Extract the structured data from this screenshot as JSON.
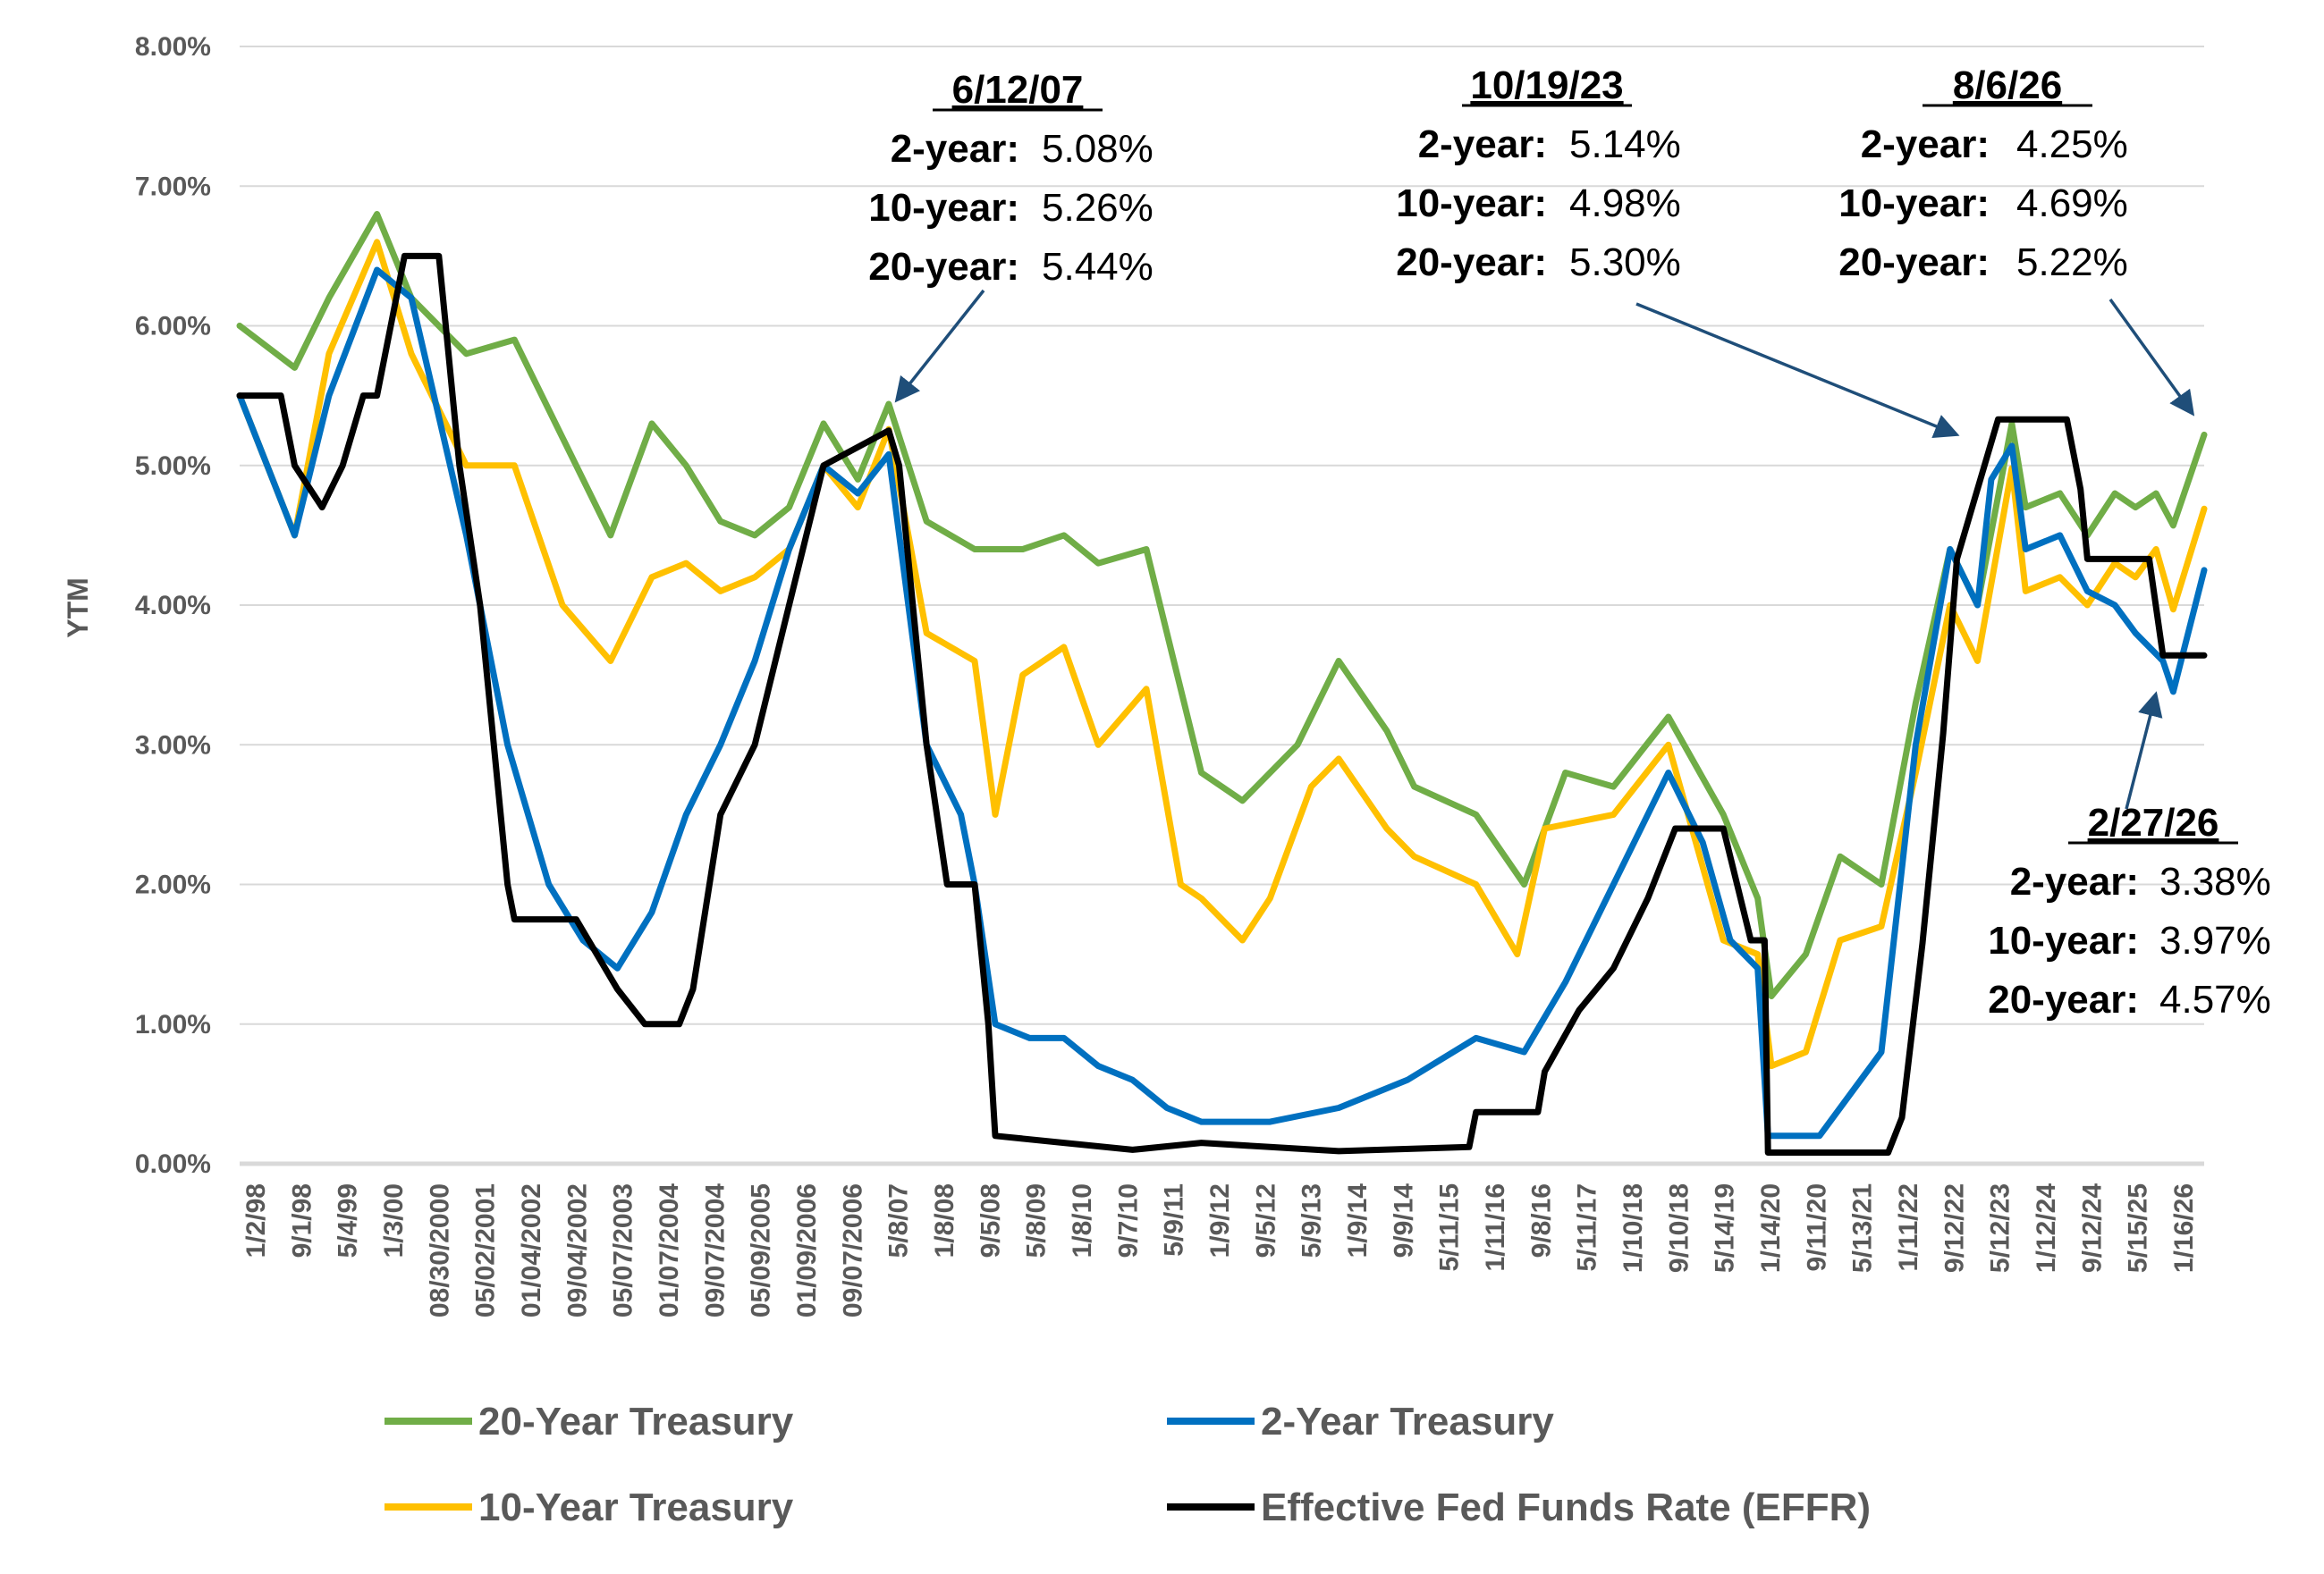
{
  "chart_data": {
    "type": "line",
    "title": "",
    "xlabel": "",
    "ylabel": "YTM",
    "ylim": [
      0,
      0.08
    ],
    "y_ticks": [
      "0.00%",
      "1.00%",
      "2.00%",
      "3.00%",
      "4.00%",
      "5.00%",
      "6.00%",
      "7.00%",
      "8.00%"
    ],
    "x_ticks": [
      "1/2/98",
      "9/1/98",
      "5/4/99",
      "1/3/00",
      "08/30/2000",
      "05/02/2001",
      "01/04/2002",
      "09/04/2002",
      "05/07/2003",
      "01/07/2004",
      "09/07/2004",
      "05/09/2005",
      "01/09/2006",
      "09/07/2006",
      "5/8/07",
      "1/8/08",
      "9/5/08",
      "5/8/09",
      "1/8/10",
      "9/7/10",
      "5/9/11",
      "1/9/12",
      "9/5/12",
      "5/9/13",
      "1/9/14",
      "9/9/14",
      "5/11/15",
      "1/11/16",
      "9/8/16",
      "5/11/17",
      "1/10/18",
      "9/10/18",
      "5/14/19",
      "1/14/20",
      "9/11/20",
      "5/13/21",
      "1/11/22",
      "9/12/22",
      "5/12/23",
      "1/12/24",
      "9/12/24",
      "5/15/25",
      "1/16/26"
    ],
    "grid": "horizontal",
    "legend_position": "bottom",
    "series": [
      {
        "name": "20-Year Treasury",
        "color": "#70AD47",
        "x": [
          1998.0,
          1998.8,
          1999.3,
          2000.0,
          2000.5,
          2001.3,
          2002.0,
          2002.7,
          2003.4,
          2004.0,
          2004.5,
          2005.0,
          2005.5,
          2006.0,
          2006.5,
          2007.0,
          2007.45,
          2008.0,
          2008.7,
          2009.4,
          2010.0,
          2010.5,
          2011.2,
          2011.6,
          2012.0,
          2012.6,
          2013.4,
          2014.0,
          2014.7,
          2015.1,
          2016.0,
          2016.7,
          2017.3,
          2018.0,
          2018.8,
          2019.6,
          2020.1,
          2020.3,
          2020.8,
          2021.3,
          2021.9,
          2022.4,
          2022.9,
          2023.3,
          2023.8,
          2024.0,
          2024.5,
          2024.9,
          2025.3,
          2025.6,
          2025.9,
          2026.15,
          2026.6
        ],
        "values": [
          0.06,
          0.057,
          0.062,
          0.068,
          0.062,
          0.058,
          0.059,
          0.052,
          0.045,
          0.053,
          0.05,
          0.046,
          0.045,
          0.047,
          0.053,
          0.049,
          0.0544,
          0.046,
          0.044,
          0.044,
          0.045,
          0.043,
          0.044,
          0.036,
          0.028,
          0.026,
          0.03,
          0.036,
          0.031,
          0.027,
          0.025,
          0.02,
          0.028,
          0.027,
          0.032,
          0.025,
          0.019,
          0.012,
          0.015,
          0.022,
          0.02,
          0.033,
          0.044,
          0.04,
          0.053,
          0.047,
          0.048,
          0.045,
          0.048,
          0.047,
          0.048,
          0.0457,
          0.0522
        ]
      },
      {
        "name": "2-Year Treasury",
        "color": "#0070C0",
        "x": [
          1998.0,
          1998.8,
          1999.3,
          2000.0,
          2000.5,
          2001.3,
          2001.9,
          2002.5,
          2003.0,
          2003.5,
          2004.0,
          2004.5,
          2005.0,
          2005.5,
          2006.0,
          2006.5,
          2007.0,
          2007.45,
          2008.0,
          2008.5,
          2008.7,
          2009.0,
          2009.5,
          2010.0,
          2010.5,
          2011.0,
          2011.5,
          2012.0,
          2013.0,
          2014.0,
          2015.0,
          2016.0,
          2016.7,
          2017.3,
          2018.0,
          2018.8,
          2019.3,
          2019.7,
          2020.1,
          2020.25,
          2021.0,
          2021.9,
          2022.4,
          2022.9,
          2023.3,
          2023.5,
          2023.8,
          2024.0,
          2024.5,
          2024.9,
          2025.3,
          2025.6,
          2026.0,
          2026.15,
          2026.6
        ],
        "values": [
          0.055,
          0.045,
          0.055,
          0.064,
          0.062,
          0.045,
          0.03,
          0.02,
          0.016,
          0.014,
          0.018,
          0.025,
          0.03,
          0.036,
          0.044,
          0.05,
          0.048,
          0.0508,
          0.03,
          0.025,
          0.02,
          0.01,
          0.009,
          0.009,
          0.007,
          0.006,
          0.004,
          0.003,
          0.003,
          0.004,
          0.006,
          0.009,
          0.008,
          0.013,
          0.02,
          0.028,
          0.023,
          0.016,
          0.014,
          0.002,
          0.002,
          0.008,
          0.03,
          0.044,
          0.04,
          0.049,
          0.0514,
          0.044,
          0.045,
          0.041,
          0.04,
          0.038,
          0.036,
          0.0338,
          0.0425
        ]
      },
      {
        "name": "10-Year Treasury",
        "color": "#FFC000",
        "x": [
          1998.0,
          1998.8,
          1999.3,
          2000.0,
          2000.5,
          2001.3,
          2002.0,
          2002.7,
          2003.4,
          2004.0,
          2004.5,
          2005.0,
          2005.5,
          2006.0,
          2006.5,
          2007.0,
          2007.45,
          2008.0,
          2008.7,
          2009.0,
          2009.4,
          2010.0,
          2010.5,
          2011.2,
          2011.7,
          2012.0,
          2012.6,
          2013.0,
          2013.6,
          2014.0,
          2014.7,
          2015.1,
          2016.0,
          2016.6,
          2017.0,
          2018.0,
          2018.8,
          2019.6,
          2020.1,
          2020.3,
          2020.8,
          2021.3,
          2021.9,
          2022.4,
          2022.9,
          2023.3,
          2023.8,
          2024.0,
          2024.5,
          2024.9,
          2025.3,
          2025.6,
          2025.9,
          2026.15,
          2026.6
        ],
        "values": [
          0.055,
          0.045,
          0.058,
          0.066,
          0.058,
          0.05,
          0.05,
          0.04,
          0.036,
          0.042,
          0.043,
          0.041,
          0.042,
          0.044,
          0.05,
          0.047,
          0.0526,
          0.038,
          0.036,
          0.025,
          0.035,
          0.037,
          0.03,
          0.034,
          0.02,
          0.019,
          0.016,
          0.019,
          0.027,
          0.029,
          0.024,
          0.022,
          0.02,
          0.015,
          0.024,
          0.025,
          0.03,
          0.016,
          0.015,
          0.007,
          0.008,
          0.016,
          0.017,
          0.028,
          0.04,
          0.036,
          0.0498,
          0.041,
          0.042,
          0.04,
          0.043,
          0.042,
          0.044,
          0.0397,
          0.0469
        ]
      },
      {
        "name": "Effective Fed Funds Rate (EFFR)",
        "color": "#000000",
        "x": [
          1998.0,
          1998.6,
          1998.8,
          1999.2,
          1999.5,
          1999.8,
          2000.0,
          2000.4,
          2000.9,
          2001.0,
          2001.2,
          2001.5,
          2001.9,
          2002.0,
          2002.9,
          2003.5,
          2003.9,
          2004.4,
          2004.6,
          2005.0,
          2005.5,
          2006.0,
          2006.5,
          2007.45,
          2007.6,
          2008.0,
          2008.3,
          2008.7,
          2008.9,
          2009.0,
          2010.0,
          2011.0,
          2012.0,
          2013.0,
          2014.0,
          2015.9,
          2016.0,
          2016.9,
          2017.0,
          2017.5,
          2018.0,
          2018.5,
          2018.9,
          2019.6,
          2020.0,
          2020.2,
          2020.25,
          2021.0,
          2022.0,
          2022.2,
          2022.5,
          2022.8,
          2023.0,
          2023.3,
          2023.6,
          2024.6,
          2024.8,
          2024.9,
          2025.8,
          2026.0,
          2026.6
        ],
        "values": [
          0.055,
          0.055,
          0.05,
          0.047,
          0.05,
          0.055,
          0.055,
          0.065,
          0.065,
          0.06,
          0.05,
          0.04,
          0.02,
          0.0175,
          0.0175,
          0.0125,
          0.01,
          0.01,
          0.0125,
          0.025,
          0.03,
          0.04,
          0.05,
          0.0525,
          0.05,
          0.03,
          0.02,
          0.02,
          0.01,
          0.002,
          0.0015,
          0.001,
          0.0015,
          0.0012,
          0.0009,
          0.0012,
          0.0037,
          0.0037,
          0.0066,
          0.011,
          0.014,
          0.019,
          0.024,
          0.024,
          0.016,
          0.016,
          0.0008,
          0.0008,
          0.0008,
          0.0033,
          0.0158,
          0.0308,
          0.0433,
          0.0483,
          0.0533,
          0.0533,
          0.0483,
          0.0433,
          0.0433,
          0.0364,
          0.0364
        ]
      }
    ],
    "annotations": [
      {
        "date": "6/12/07",
        "lines": [
          {
            "label": "2-year:",
            "value": "5.08%"
          },
          {
            "label": "10-year:",
            "value": "5.26%"
          },
          {
            "label": "20-year:",
            "value": "5.44%"
          }
        ],
        "point": {
          "x": 2007.45,
          "y": 0.0544
        }
      },
      {
        "date": "10/19/23",
        "lines": [
          {
            "label": "2-year:",
            "value": "5.14%"
          },
          {
            "label": "10-year:",
            "value": "4.98%"
          },
          {
            "label": "20-year:",
            "value": "5.30%"
          }
        ],
        "point": {
          "x": 2023.8,
          "y": 0.053
        }
      },
      {
        "date": "8/6/26",
        "lines": [
          {
            "label": "2-year:",
            "value": "4.25%"
          },
          {
            "label": "10-year:",
            "value": "4.69%"
          },
          {
            "label": "20-year:",
            "value": "5.22%"
          }
        ],
        "point": {
          "x": 2026.6,
          "y": 0.054
        }
      },
      {
        "date": "2/27/26",
        "lines": [
          {
            "label": "2-year:",
            "value": "3.38%"
          },
          {
            "label": "10-year:",
            "value": "3.97%"
          },
          {
            "label": "20-year:",
            "value": "4.57%"
          }
        ],
        "point": {
          "x": 2026.15,
          "y": 0.0338
        }
      }
    ]
  }
}
